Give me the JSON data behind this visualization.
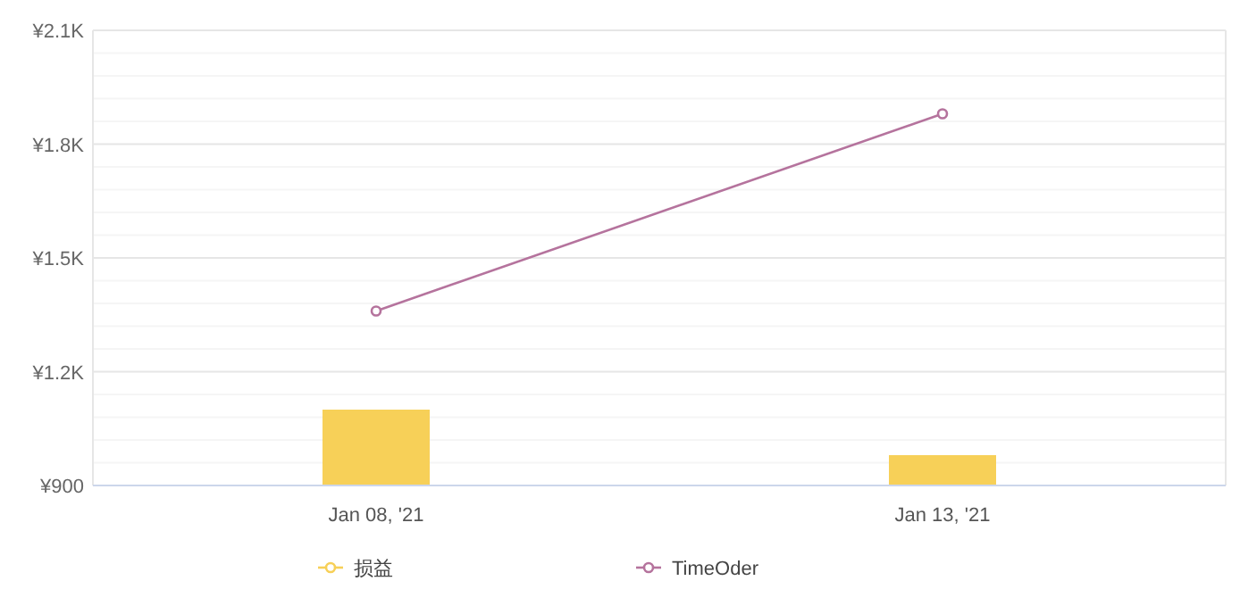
{
  "chart_data": {
    "type": "bar",
    "categories": [
      "Jan 08, '21",
      "Jan 13, '21"
    ],
    "series": [
      {
        "name": "损益",
        "color": "#f7d058",
        "values": [
          1100,
          980
        ]
      },
      {
        "name": "TimeOder",
        "type": "line",
        "color": "#b5739d",
        "values": [
          1360,
          1880
        ],
        "marker": "circle"
      }
    ],
    "ylim": [
      900,
      2100
    ],
    "yticks": [
      {
        "value": 900,
        "label": "¥900"
      },
      {
        "value": 1200,
        "label": "¥1.2K"
      },
      {
        "value": 1500,
        "label": "¥1.5K"
      },
      {
        "value": 1800,
        "label": "¥1.8K"
      },
      {
        "value": 2100,
        "label": "¥2.1K"
      }
    ],
    "grid": "y",
    "legend": "bottom"
  }
}
